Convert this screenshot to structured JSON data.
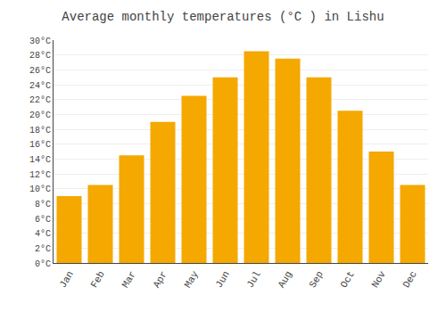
{
  "chart_data": {
    "type": "bar",
    "title": "Average monthly temperatures (°C ) in Lishu",
    "categories": [
      "Jan",
      "Feb",
      "Mar",
      "Apr",
      "May",
      "Jun",
      "Jul",
      "Aug",
      "Sep",
      "Oct",
      "Nov",
      "Dec"
    ],
    "values": [
      9.0,
      10.5,
      14.5,
      19.0,
      22.5,
      25.0,
      28.5,
      27.5,
      25.0,
      20.5,
      15.0,
      10.5
    ],
    "color": "#F5A800",
    "ylim": [
      0,
      30
    ],
    "yticks": [
      {
        "value": 0,
        "label": "0°C"
      },
      {
        "value": 2,
        "label": "2°C"
      },
      {
        "value": 4,
        "label": "4°C"
      },
      {
        "value": 6,
        "label": "6°C"
      },
      {
        "value": 8,
        "label": "8°C"
      },
      {
        "value": 10,
        "label": "10°C"
      },
      {
        "value": 12,
        "label": "12°C"
      },
      {
        "value": 14,
        "label": "14°C"
      },
      {
        "value": 16,
        "label": "16°C"
      },
      {
        "value": 18,
        "label": "18°C"
      },
      {
        "value": 20,
        "label": "20°C"
      },
      {
        "value": 22,
        "label": "22°C"
      },
      {
        "value": 24,
        "label": "24°C"
      },
      {
        "value": 26,
        "label": "26°C"
      },
      {
        "value": 28,
        "label": "28°C"
      },
      {
        "value": 30,
        "label": "30°C"
      }
    ],
    "grid": true
  }
}
